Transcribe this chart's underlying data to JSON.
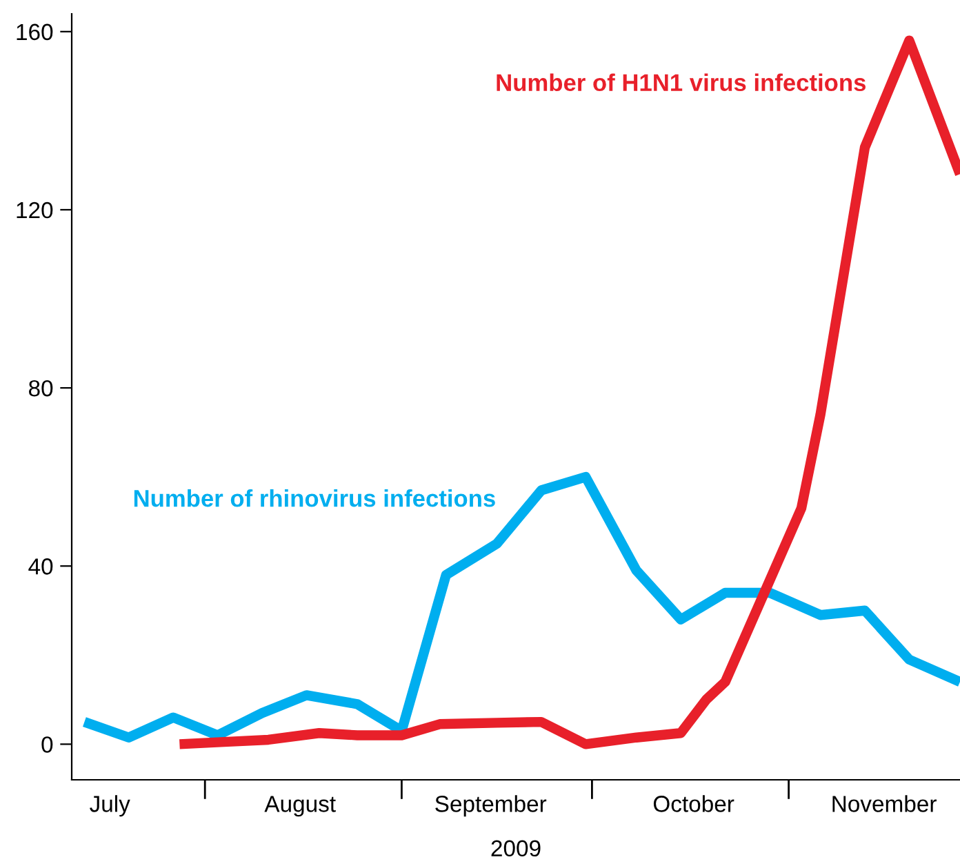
{
  "chart_data": {
    "type": "line",
    "xlabel": "2009",
    "xlim": [
      "2009-07-11",
      "2009-11-28"
    ],
    "ylim": [
      -8,
      164
    ],
    "yticks": [
      0,
      40,
      80,
      120,
      160
    ],
    "xticks": [
      {
        "value": "2009-08-01",
        "label": null
      },
      {
        "value": "2009-09-01",
        "label": null
      },
      {
        "value": "2009-10-01",
        "label": null
      },
      {
        "value": "2009-11-01",
        "label": null
      },
      {
        "value": "2009-07-17",
        "label": "July"
      },
      {
        "value": "2009-08-16",
        "label": "August"
      },
      {
        "value": "2009-09-15",
        "label": "September"
      },
      {
        "value": "2009-10-17",
        "label": "October"
      },
      {
        "value": "2009-11-16",
        "label": "November"
      }
    ],
    "grid": false,
    "legend": false,
    "marker": "none",
    "line_style": "solid",
    "series": [
      {
        "name": "Number of rhinovirus infections",
        "color": "#00aeef",
        "x": [
          "2009-07-13",
          "2009-07-20",
          "2009-07-27",
          "2009-08-03",
          "2009-08-10",
          "2009-08-17",
          "2009-08-25",
          "2009-09-01",
          "2009-09-08",
          "2009-09-16",
          "2009-09-23",
          "2009-09-30",
          "2009-10-08",
          "2009-10-15",
          "2009-10-22",
          "2009-10-29",
          "2009-11-06",
          "2009-11-13",
          "2009-11-20",
          "2009-11-28"
        ],
        "values": [
          5,
          1.5,
          6,
          2,
          7,
          11,
          9,
          3,
          38,
          45,
          57,
          60,
          39,
          28,
          34,
          34,
          29,
          30,
          19,
          14
        ]
      },
      {
        "name": "Number of H1N1 virus infections",
        "color": "#e8202a",
        "x": [
          "2009-07-28",
          "2009-08-04",
          "2009-08-11",
          "2009-08-19",
          "2009-08-25",
          "2009-09-01",
          "2009-09-07",
          "2009-09-16",
          "2009-09-23",
          "2009-09-30",
          "2009-10-08",
          "2009-10-15",
          "2009-10-19",
          "2009-10-22",
          "2009-11-03",
          "2009-11-06",
          "2009-11-13",
          "2009-11-20",
          "2009-11-28"
        ],
        "values": [
          0,
          0.5,
          1,
          2.5,
          2,
          2,
          4.5,
          4.8,
          5,
          0,
          1.5,
          2.5,
          10,
          14,
          53,
          74,
          134,
          158,
          128
        ]
      }
    ]
  }
}
